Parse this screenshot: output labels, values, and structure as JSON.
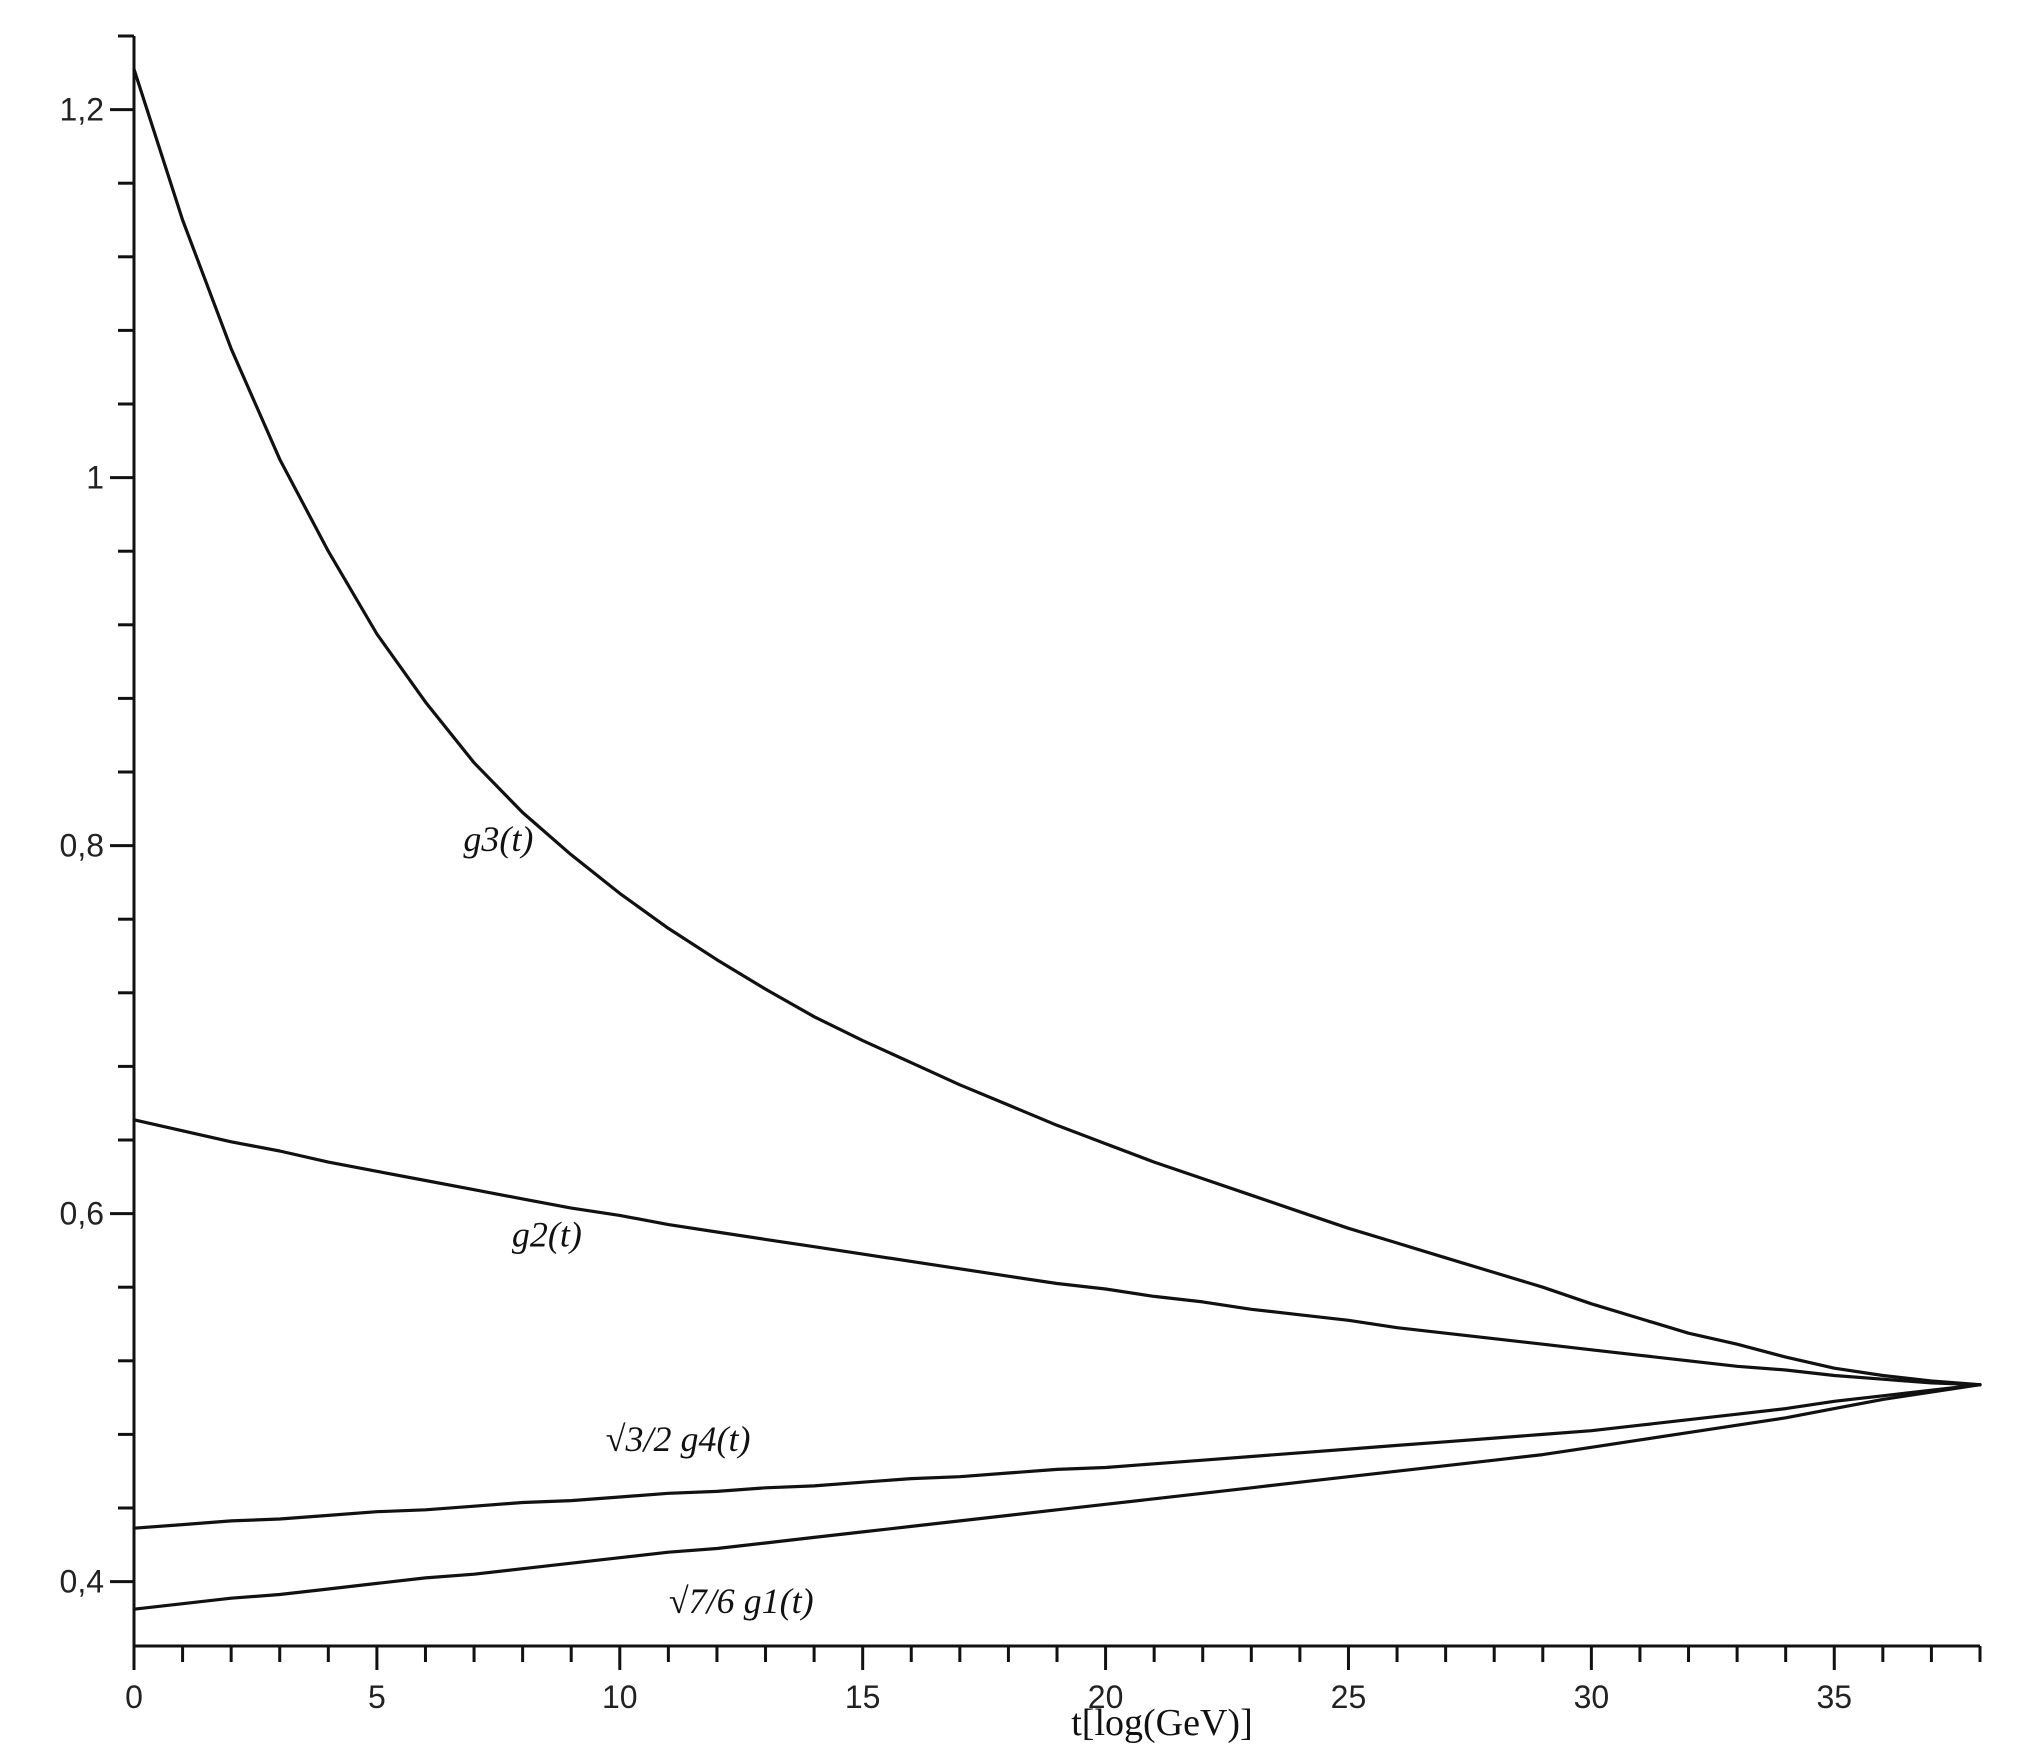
{
  "chart_data": {
    "type": "line",
    "title": "",
    "xlabel": "t[log(GeV)]",
    "ylabel": "",
    "xlim": [
      0,
      38
    ],
    "ylim": [
      0.365,
      1.24
    ],
    "grid": false,
    "x_ticks": [
      0,
      5,
      10,
      15,
      20,
      25,
      30,
      35
    ],
    "x_tick_labels": [
      "0",
      "5",
      "10",
      "15",
      "20",
      "25",
      "30",
      "35"
    ],
    "x_minor_step": 1,
    "y_ticks": [
      0.4,
      0.6,
      0.8,
      1.0,
      1.2
    ],
    "y_tick_labels": [
      "0,4",
      "0,6",
      "0,8",
      "1",
      "1,2"
    ],
    "y_minor_step": 0.04,
    "series": [
      {
        "name": "g3(t)",
        "x": [
          0,
          1,
          2,
          3,
          4,
          5,
          6,
          7,
          8,
          9,
          10,
          11,
          12,
          13,
          14,
          15,
          16,
          17,
          18,
          19,
          20,
          21,
          22,
          23,
          24,
          25,
          26,
          27,
          28,
          29,
          30,
          31,
          32,
          33,
          34,
          35,
          36,
          37,
          38
        ],
        "values": [
          1.222,
          1.14,
          1.07,
          1.01,
          0.96,
          0.915,
          0.878,
          0.845,
          0.818,
          0.795,
          0.774,
          0.755,
          0.738,
          0.722,
          0.707,
          0.694,
          0.682,
          0.67,
          0.659,
          0.648,
          0.638,
          0.628,
          0.619,
          0.61,
          0.601,
          0.592,
          0.584,
          0.576,
          0.568,
          0.56,
          0.551,
          0.543,
          0.535,
          0.529,
          0.522,
          0.516,
          0.512,
          0.509,
          0.507
        ]
      },
      {
        "name": "g2(t)",
        "x": [
          0,
          1,
          2,
          3,
          4,
          5,
          6,
          7,
          8,
          9,
          10,
          11,
          12,
          13,
          14,
          15,
          16,
          17,
          18,
          19,
          20,
          21,
          22,
          23,
          24,
          25,
          26,
          27,
          28,
          29,
          30,
          31,
          32,
          33,
          34,
          35,
          36,
          37,
          38
        ],
        "values": [
          0.651,
          0.645,
          0.639,
          0.634,
          0.628,
          0.623,
          0.618,
          0.613,
          0.608,
          0.603,
          0.599,
          0.594,
          0.59,
          0.586,
          0.582,
          0.578,
          0.574,
          0.57,
          0.566,
          0.562,
          0.559,
          0.555,
          0.552,
          0.548,
          0.545,
          0.542,
          0.538,
          0.535,
          0.532,
          0.529,
          0.526,
          0.523,
          0.52,
          0.517,
          0.515,
          0.512,
          0.51,
          0.508,
          0.507
        ]
      },
      {
        "name": "√3/2 g4(t)",
        "x": [
          0,
          1,
          2,
          3,
          4,
          5,
          6,
          7,
          8,
          9,
          10,
          11,
          12,
          13,
          14,
          15,
          16,
          17,
          18,
          19,
          20,
          21,
          22,
          23,
          24,
          25,
          26,
          27,
          28,
          29,
          30,
          31,
          32,
          33,
          34,
          35,
          36,
          37,
          38
        ],
        "values": [
          0.429,
          0.431,
          0.433,
          0.434,
          0.436,
          0.438,
          0.439,
          0.441,
          0.443,
          0.444,
          0.446,
          0.448,
          0.449,
          0.451,
          0.452,
          0.454,
          0.456,
          0.457,
          0.459,
          0.461,
          0.462,
          0.464,
          0.466,
          0.468,
          0.47,
          0.472,
          0.474,
          0.476,
          0.478,
          0.48,
          0.482,
          0.485,
          0.488,
          0.491,
          0.494,
          0.498,
          0.501,
          0.504,
          0.507
        ]
      },
      {
        "name": "√7/6 g1(t)",
        "x": [
          0,
          1,
          2,
          3,
          4,
          5,
          6,
          7,
          8,
          9,
          10,
          11,
          12,
          13,
          14,
          15,
          16,
          17,
          18,
          19,
          20,
          21,
          22,
          23,
          24,
          25,
          26,
          27,
          28,
          29,
          30,
          31,
          32,
          33,
          34,
          35,
          36,
          37,
          38
        ],
        "values": [
          0.385,
          0.388,
          0.391,
          0.393,
          0.396,
          0.399,
          0.402,
          0.404,
          0.407,
          0.41,
          0.413,
          0.416,
          0.418,
          0.421,
          0.424,
          0.427,
          0.43,
          0.433,
          0.436,
          0.439,
          0.442,
          0.445,
          0.448,
          0.451,
          0.454,
          0.457,
          0.46,
          0.463,
          0.466,
          0.469,
          0.473,
          0.477,
          0.481,
          0.485,
          0.489,
          0.494,
          0.499,
          0.503,
          0.507
        ]
      }
    ],
    "annotations": [
      {
        "series": 0,
        "text": "g3(t)",
        "x": 7.5,
        "y": 0.797
      },
      {
        "series": 1,
        "text": "g2(t)",
        "x": 8.5,
        "y": 0.582
      },
      {
        "series": 2,
        "text": "√3/2 g4(t)",
        "x": 11.2,
        "y": 0.471
      },
      {
        "series": 3,
        "text": "√7/6 g1(t)",
        "x": 12.5,
        "y": 0.383
      }
    ]
  }
}
